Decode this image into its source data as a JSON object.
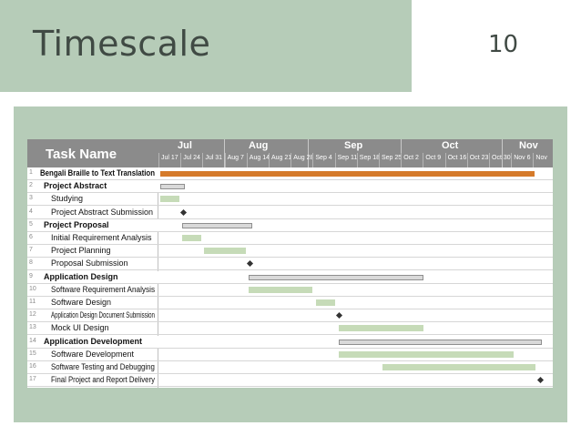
{
  "slide": {
    "title": "Timescale",
    "number": "10"
  },
  "gantt": {
    "task_header": "Task Name",
    "months": [
      "Jul",
      "Aug",
      "Sep",
      "Oct",
      "Nov"
    ],
    "weeks": [
      "Jul 17",
      "Jul 24",
      "Jul 31",
      "Aug 7",
      "Aug 14",
      "Aug 21",
      "Aug 28",
      "Sep 4",
      "Sep 11",
      "Sep 18",
      "Sep 25",
      "Oct 2",
      "Oct 9",
      "Oct 16",
      "Oct 23",
      "Oct 30",
      "Nov 6",
      "Nov"
    ],
    "tasks": [
      {
        "id": "1",
        "name": "Bengali Braille to Text Translation",
        "level": "project",
        "bold": true
      },
      {
        "id": "2",
        "name": "Project Abstract",
        "level": "summary",
        "bold": true
      },
      {
        "id": "3",
        "name": "Studying",
        "level": "task",
        "bold": false
      },
      {
        "id": "4",
        "name": "Project Abstract Submission",
        "level": "task",
        "bold": false
      },
      {
        "id": "5",
        "name": "Project Proposal",
        "level": "summary",
        "bold": true
      },
      {
        "id": "6",
        "name": "Initial Requirement Analysis",
        "level": "task",
        "bold": false
      },
      {
        "id": "7",
        "name": "Project Planning",
        "level": "task",
        "bold": false
      },
      {
        "id": "8",
        "name": "Proposal Submission",
        "level": "task",
        "bold": false
      },
      {
        "id": "9",
        "name": "Application Design",
        "level": "summary",
        "bold": true
      },
      {
        "id": "10",
        "name": "Software Requirement Analysis",
        "level": "task",
        "bold": false
      },
      {
        "id": "11",
        "name": "Software Design",
        "level": "task",
        "bold": false
      },
      {
        "id": "12",
        "name": "Application Design Document Submission",
        "level": "task",
        "bold": false
      },
      {
        "id": "13",
        "name": "Mock UI Design",
        "level": "task",
        "bold": false
      },
      {
        "id": "14",
        "name": "Application Development",
        "level": "summary",
        "bold": true
      },
      {
        "id": "15",
        "name": "Software Development",
        "level": "task",
        "bold": false
      },
      {
        "id": "16",
        "name": "Software Testing and Debugging",
        "level": "task",
        "bold": false
      },
      {
        "id": "17",
        "name": "Final Project and Report Delivery",
        "level": "task",
        "bold": false
      }
    ]
  },
  "colors": {
    "panel": "#b6ccb8",
    "task_bar": "#c6dbb8",
    "project_bar": "#d57a2a",
    "header": "#8b8b8b"
  }
}
